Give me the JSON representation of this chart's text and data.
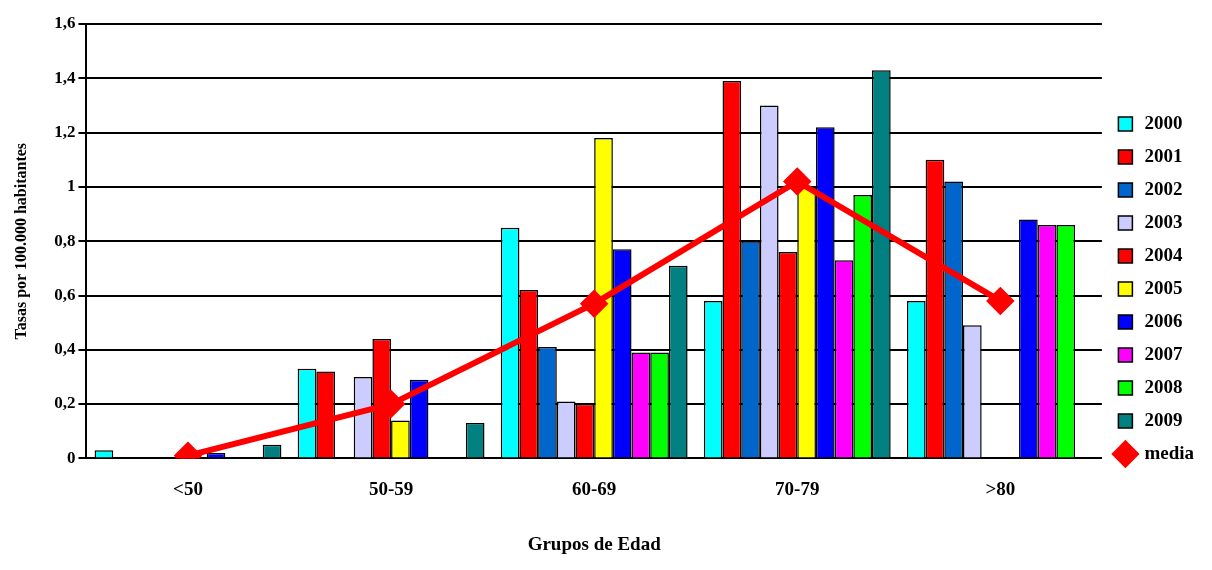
{
  "chart_data": {
    "type": "bar",
    "xlabel": "Grupos de Edad",
    "ylabel": "Tasas por 100.000 habitantes",
    "categories": [
      "<50",
      "50-59",
      "60-69",
      "70-79",
      ">80"
    ],
    "series": [
      {
        "name": "2000",
        "color": "#00ffff",
        "values": [
          0.03,
          0.33,
          0.85,
          0.58,
          0.58
        ]
      },
      {
        "name": "2001",
        "color": "#ff0000",
        "values": [
          0,
          0.32,
          0.62,
          1.39,
          1.1
        ]
      },
      {
        "name": "2002",
        "color": "#0066cc",
        "values": [
          0,
          0,
          0.41,
          0.8,
          1.02
        ]
      },
      {
        "name": "2003",
        "color": "#ccccff",
        "values": [
          0,
          0.3,
          0.21,
          1.3,
          0.49
        ]
      },
      {
        "name": "2004",
        "color": "#ff0000",
        "values": [
          null,
          0.44,
          0.2,
          0.76,
          0
        ]
      },
      {
        "name": "2005",
        "color": "#ffff00",
        "values": [
          0,
          0.14,
          1.18,
          1.0,
          0
        ]
      },
      {
        "name": "2006",
        "color": "#0000ff",
        "values": [
          0.02,
          0.29,
          0.77,
          1.22,
          0.88
        ]
      },
      {
        "name": "2007",
        "color": "#ff00ff",
        "values": [
          0,
          0,
          0.39,
          0.73,
          0.86
        ]
      },
      {
        "name": "2008",
        "color": "#00ff00",
        "values": [
          0,
          0,
          0.39,
          0.97,
          0.86
        ]
      },
      {
        "name": "2009",
        "color": "#008080",
        "values": [
          0.05,
          0.13,
          0.71,
          1.43,
          0
        ]
      },
      {
        "name": "media",
        "type": "line",
        "color": "#ff0000",
        "marker": "diamond",
        "values": [
          0.01,
          0.2,
          0.57,
          1.02,
          0.58
        ]
      }
    ],
    "ylim": [
      0,
      1.6
    ],
    "yticks": [
      0,
      {
        "value": 0.2,
        "label": "0,2"
      },
      {
        "value": 0.4,
        "label": "0,4"
      },
      {
        "value": 0.6,
        "label": "0,6"
      },
      {
        "value": 0.8,
        "label": "0,8"
      },
      1,
      {
        "value": 1.2,
        "label": "1,2"
      },
      {
        "value": 1.4,
        "label": "1,4"
      },
      {
        "value": 1.6,
        "label": "1,6"
      }
    ],
    "grid": "y",
    "legend": "right"
  }
}
